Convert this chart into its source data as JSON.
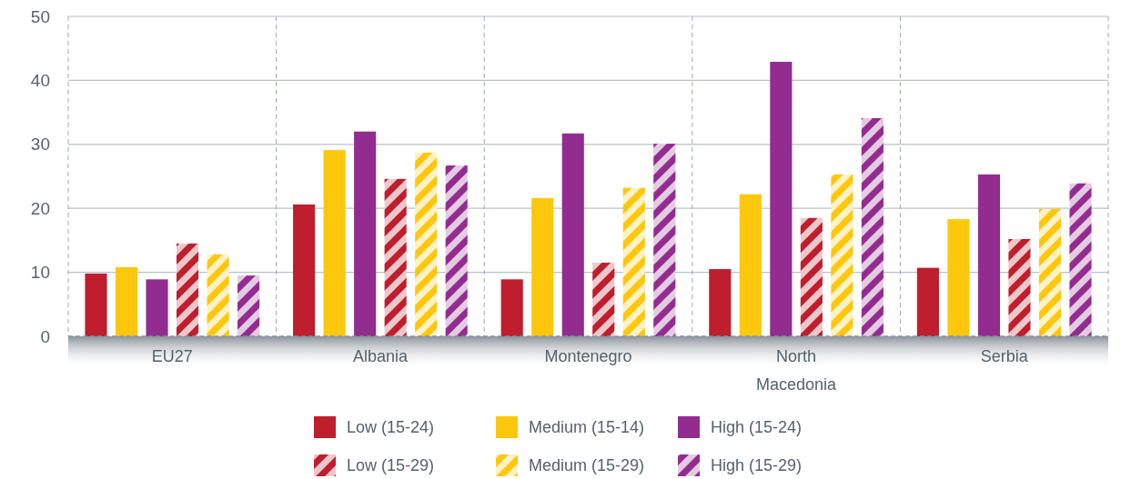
{
  "chart_data": {
    "type": "bar",
    "categories": [
      "EU27",
      "Albania",
      "Montenegro",
      "North Macedonia",
      "Serbia"
    ],
    "series": [
      {
        "name": "Low (15-24)",
        "color": "#be1e2d",
        "values": [
          9.8,
          20.6,
          8.9,
          10.5,
          10.7
        ]
      },
      {
        "name": "Medium (15-14)",
        "color": "#fcc70d",
        "values": [
          10.8,
          29.1,
          21.6,
          22.2,
          18.3
        ]
      },
      {
        "name": "High (15-24)",
        "color": "#922d8f",
        "values": [
          8.9,
          32.0,
          31.7,
          42.9,
          25.3
        ]
      },
      {
        "name": "Low (15-29)",
        "color": "#be1e2d",
        "values": [
          14.5,
          24.6,
          11.5,
          18.5,
          15.2
        ]
      },
      {
        "name": "Medium (15-29)",
        "color": "#fcc70d",
        "values": [
          12.8,
          28.7,
          23.2,
          25.3,
          19.9
        ]
      },
      {
        "name": "High (15-29)",
        "color": "#922d8f",
        "values": [
          9.5,
          26.7,
          30.1,
          34.1,
          23.9
        ]
      }
    ],
    "ylim": [
      0,
      50
    ],
    "yticks": [
      0,
      10,
      20,
      30,
      40,
      50
    ],
    "grid": true,
    "legend": "bottom"
  }
}
